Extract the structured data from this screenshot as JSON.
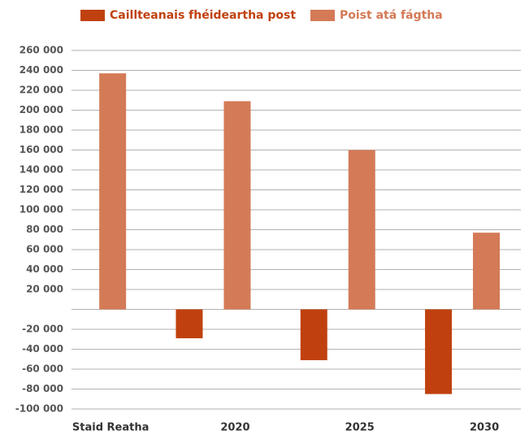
{
  "chart_data": {
    "type": "bar",
    "categories": [
      "Staid Reatha",
      "2020",
      "2025",
      "2030"
    ],
    "series": [
      {
        "name": "Caillteanais fhéideartha post",
        "color": "#c0410f",
        "values": [
          null,
          -29000,
          -51000,
          -85000
        ]
      },
      {
        "name": "Poist atá fágtha",
        "color": "#d47a56",
        "values": [
          237000,
          209000,
          160000,
          77000
        ]
      }
    ],
    "ylim": [
      -100000,
      260000
    ],
    "yticks": [
      {
        "value": 260000,
        "label": "260 000"
      },
      {
        "value": 240000,
        "label": "240 000"
      },
      {
        "value": 220000,
        "label": "220 000"
      },
      {
        "value": 200000,
        "label": "200 000"
      },
      {
        "value": 180000,
        "label": "180 000"
      },
      {
        "value": 160000,
        "label": "160 000"
      },
      {
        "value": 140000,
        "label": "140 000"
      },
      {
        "value": 120000,
        "label": "120 000"
      },
      {
        "value": 100000,
        "label": "100 000"
      },
      {
        "value": 80000,
        "label": "80 000"
      },
      {
        "value": 60000,
        "label": "60 000"
      },
      {
        "value": 40000,
        "label": "40 000"
      },
      {
        "value": 20000,
        "label": "20 000"
      },
      {
        "value": -20000,
        "label": "-20 000"
      },
      {
        "value": -40000,
        "label": "-40 000"
      },
      {
        "value": -60000,
        "label": "-60 000"
      },
      {
        "value": -80000,
        "label": "-80 000"
      },
      {
        "value": -100000,
        "label": "-100 000"
      }
    ],
    "grid": true,
    "legend": "top"
  }
}
